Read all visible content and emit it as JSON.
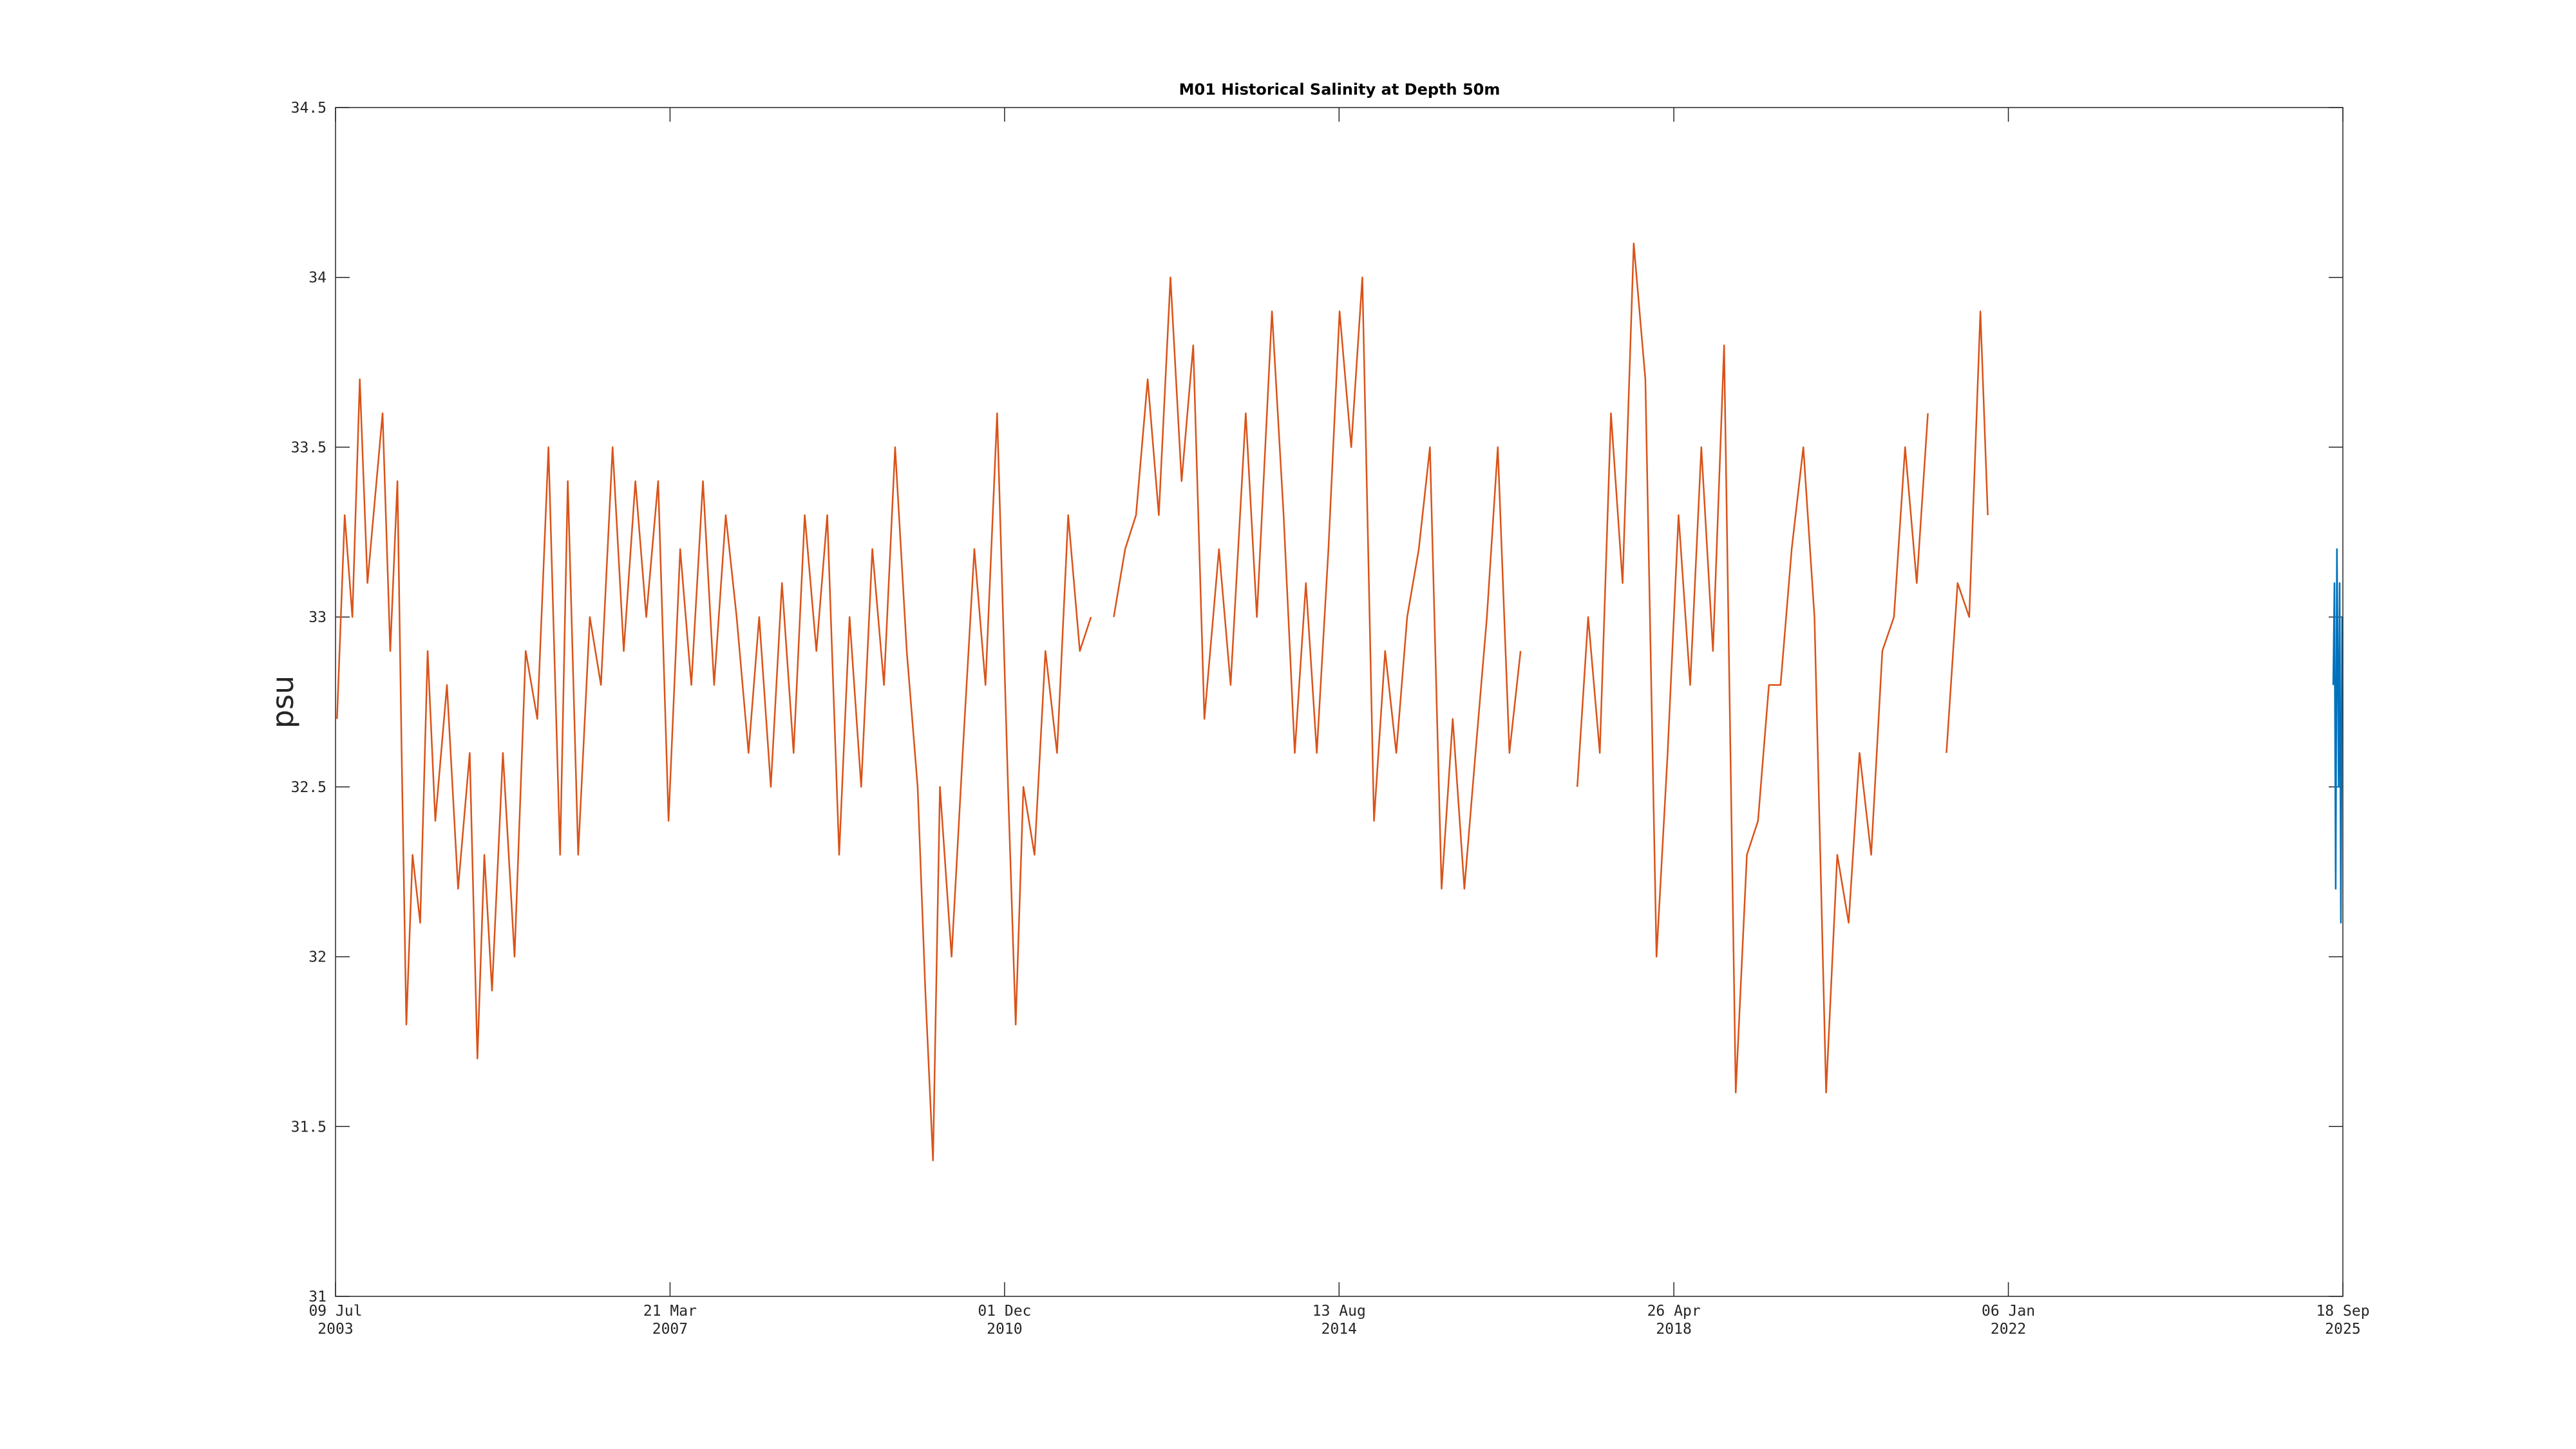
{
  "chart_data": {
    "type": "line",
    "title": "M01 Historical Salinity at Depth 50m",
    "y_label": "psu",
    "xlim": [
      "2003-07-09",
      "2025-09-18"
    ],
    "xticks": [
      {
        "value": "2003-07-09",
        "label": "09 Jul 2003"
      },
      {
        "value": "2007-03-21",
        "label": "21 Mar 2007"
      },
      {
        "value": "2010-12-01",
        "label": "01 Dec 2010"
      },
      {
        "value": "2014-08-13",
        "label": "13 Aug 2014"
      },
      {
        "value": "2018-04-26",
        "label": "26 Apr 2018"
      },
      {
        "value": "2022-01-06",
        "label": "06 Jan 2022"
      },
      {
        "value": "2025-09-18",
        "label": "18 Sep 2025"
      }
    ],
    "ylim": [
      31,
      34.5
    ],
    "yticks": [
      31,
      31.5,
      32,
      32.5,
      33,
      33.5,
      34,
      34.5
    ],
    "series": [
      {
        "color": "#d95319",
        "x": [
          "2003-07-15",
          "2003-08-15",
          "2003-09-15",
          "2003-10-15",
          "2003-11-15",
          "2004-01-15",
          "2004-02-15",
          "2004-03-15",
          "2004-04-01",
          "2004-04-20",
          "2004-05-15",
          "2004-06-15",
          "2004-07-15",
          "2004-08-15",
          "2004-10-01",
          "2004-11-15",
          "2005-01-01",
          "2005-02-01",
          "2005-03-01",
          "2005-04-01",
          "2005-05-15",
          "2005-07-01",
          "2005-08-15",
          "2005-10-01",
          "2005-11-15",
          "2006-01-01",
          "2006-02-01",
          "2006-03-15",
          "2006-05-01",
          "2006-06-15",
          "2006-08-01",
          "2006-09-15",
          "2006-11-01",
          "2006-12-15",
          "2007-02-01",
          "2007-03-15",
          "2007-05-01",
          "2007-06-15",
          "2007-08-01",
          "2007-09-15",
          "2007-11-01",
          "2007-12-15",
          "2008-02-01",
          "2008-03-15",
          "2008-05-01",
          "2008-06-15",
          "2008-08-01",
          "2008-09-15",
          "2008-11-01",
          "2008-12-15",
          "2009-02-01",
          "2009-03-15",
          "2009-05-01",
          "2009-06-15",
          "2009-08-01",
          "2009-09-15",
          "2009-11-01",
          "2009-12-15",
          "2010-01-15",
          "2010-02-15",
          "2010-03-15",
          "2010-05-01",
          "2010-06-15",
          "2010-08-01",
          "2010-09-15",
          "2010-11-01",
          "2010-12-15",
          "2011-01-15",
          "2011-02-15",
          "2011-04-01",
          "2011-05-15",
          "2011-07-01",
          "2011-08-15",
          "2011-10-01",
          "2011-11-15",
          "2012-01-01",
          "2012-02-15",
          "2012-04-01",
          "2012-05-15",
          "2012-07-01",
          "2012-08-15",
          "2012-10-01",
          "2012-11-15",
          "2013-01-01",
          "2013-02-15",
          "2013-04-15",
          "2013-06-01",
          "2013-08-01",
          "2013-09-15",
          "2013-11-15",
          "2014-01-01",
          "2014-02-15",
          "2014-04-01",
          "2014-05-15",
          "2014-07-01",
          "2014-08-15",
          "2014-10-01",
          "2014-11-15",
          "2015-01-01",
          "2015-02-15",
          "2015-04-01",
          "2015-05-15",
          "2015-07-01",
          "2015-08-15",
          "2015-10-01",
          "2015-11-15",
          "2016-01-01",
          "2016-02-15",
          "2016-04-01",
          "2016-05-15",
          "2016-07-01",
          "2016-08-15",
          "2016-12-01",
          "2017-04-01",
          "2017-05-15",
          "2017-07-01",
          "2017-08-15",
          "2017-10-01",
          "2017-11-15",
          "2018-01-01",
          "2018-02-15",
          "2018-04-01",
          "2018-05-15",
          "2018-07-01",
          "2018-08-15",
          "2018-10-01",
          "2018-11-15",
          "2019-01-01",
          "2019-02-15",
          "2019-04-01",
          "2019-05-15",
          "2019-07-01",
          "2019-08-15",
          "2019-10-01",
          "2019-11-15",
          "2020-01-01",
          "2020-02-15",
          "2020-04-01",
          "2020-05-15",
          "2020-07-01",
          "2020-08-15",
          "2020-10-01",
          "2020-11-15",
          "2021-01-01",
          "2021-02-15",
          "2021-03-15",
          "2021-05-01",
          "2021-06-15",
          "2021-08-01",
          "2021-09-15",
          "2021-10-15"
        ],
        "values": [
          32.7,
          33.3,
          33.0,
          33.7,
          33.1,
          33.6,
          32.9,
          33.4,
          32.6,
          31.8,
          32.3,
          32.1,
          32.9,
          32.4,
          32.8,
          32.2,
          32.6,
          31.7,
          32.3,
          31.9,
          32.6,
          32.0,
          32.9,
          32.7,
          33.5,
          32.3,
          33.4,
          32.3,
          33.0,
          32.8,
          33.5,
          32.9,
          33.4,
          33.0,
          33.4,
          32.4,
          33.2,
          32.8,
          33.4,
          32.8,
          33.3,
          33.0,
          32.6,
          33.0,
          32.5,
          33.1,
          32.6,
          33.3,
          32.9,
          33.3,
          32.3,
          33.0,
          32.5,
          33.2,
          32.8,
          33.5,
          32.9,
          32.5,
          31.9,
          31.4,
          32.5,
          32.0,
          32.6,
          33.2,
          32.8,
          33.6,
          32.5,
          31.8,
          32.5,
          32.3,
          32.9,
          32.6,
          33.3,
          32.9,
          33.0,
          null,
          33.0,
          33.2,
          33.3,
          33.7,
          33.3,
          34.0,
          33.4,
          33.8,
          32.7,
          33.2,
          32.8,
          33.6,
          33.0,
          33.9,
          33.3,
          32.6,
          33.1,
          32.6,
          33.2,
          33.9,
          33.5,
          34.0,
          32.4,
          32.9,
          32.6,
          33.0,
          33.2,
          33.5,
          32.2,
          32.7,
          32.2,
          32.6,
          33.0,
          33.5,
          32.6,
          32.9,
          null,
          32.5,
          33.0,
          32.6,
          33.6,
          33.1,
          34.1,
          33.7,
          32.0,
          32.6,
          33.3,
          32.8,
          33.5,
          32.9,
          33.8,
          31.6,
          32.3,
          32.4,
          32.8,
          32.8,
          33.2,
          33.5,
          33.0,
          31.6,
          32.3,
          32.1,
          32.6,
          32.3,
          32.9,
          33.0,
          33.5,
          33.1,
          33.6,
          null,
          32.6,
          33.1,
          33.0,
          33.9,
          33.3
        ]
      },
      {
        "color": "#0072bd",
        "x": [
          "2025-08-10",
          "2025-08-15",
          "2025-08-20",
          "2025-08-25",
          "2025-09-01",
          "2025-09-05",
          "2025-09-10",
          "2025-09-15"
        ],
        "values": [
          32.8,
          33.1,
          32.2,
          33.2,
          32.5,
          33.1,
          32.1,
          33.0
        ]
      }
    ]
  }
}
